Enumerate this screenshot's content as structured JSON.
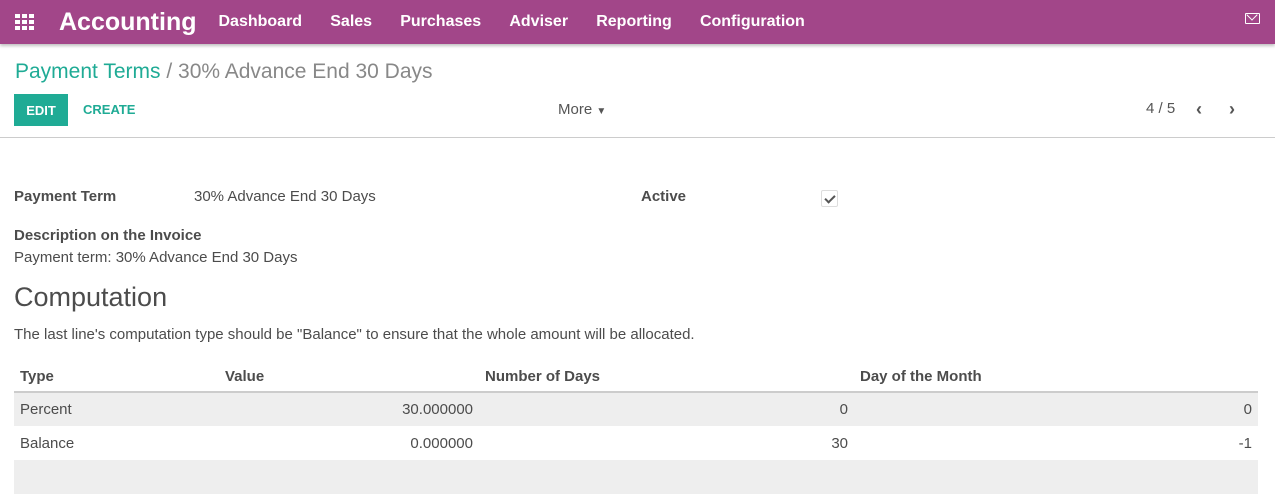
{
  "nav": {
    "app": "Accounting",
    "menu": [
      "Dashboard",
      "Sales",
      "Purchases",
      "Adviser",
      "Reporting",
      "Configuration"
    ]
  },
  "breadcrumb": {
    "parent": "Payment Terms",
    "current": "30% Advance End 30 Days"
  },
  "toolbar": {
    "edit": "EDIT",
    "create": "CREATE",
    "more": "More",
    "pager": "4 / 5"
  },
  "form": {
    "payment_term_label": "Payment Term",
    "payment_term": "30% Advance End 30 Days",
    "active_label": "Active",
    "active": true,
    "desc_label": "Description on the Invoice",
    "desc": "Payment term: 30% Advance End 30 Days",
    "section": "Computation",
    "note": "The last line's computation type should be \"Balance\" to ensure that the whole amount will be allocated."
  },
  "table": {
    "headers": [
      "Type",
      "Value",
      "Number of Days",
      "Day of the Month"
    ],
    "rows": [
      [
        "Percent",
        "30.000000",
        "0",
        "0"
      ],
      [
        "Balance",
        "0.000000",
        "30",
        "-1"
      ]
    ]
  }
}
